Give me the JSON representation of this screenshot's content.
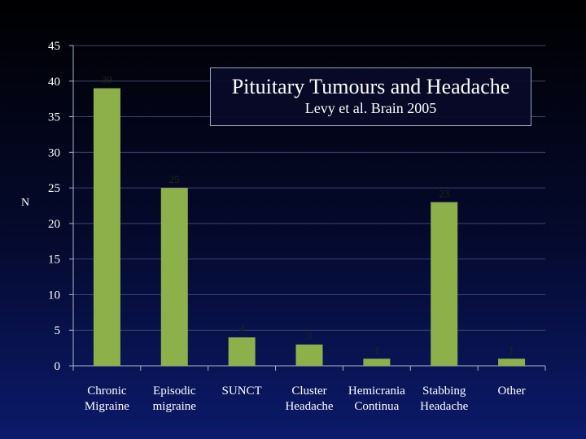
{
  "chart_data": {
    "type": "bar",
    "title": "Pituitary Tumours and Headache",
    "subtitle": "Levy et al. Brain 2005",
    "ylabel": "N",
    "xlabel": "",
    "ylim": [
      0,
      45
    ],
    "yticks": [
      0,
      5,
      10,
      15,
      20,
      25,
      30,
      35,
      40,
      45
    ],
    "grid": true,
    "bar_color": "#8db04a",
    "categories": [
      [
        "Chronic",
        "Migraine"
      ],
      [
        "Episodic",
        "migraine"
      ],
      [
        "SUNCT"
      ],
      [
        "Cluster",
        "Headache"
      ],
      [
        "Hemicrania",
        "Continua"
      ],
      [
        "Stabbing",
        "Headache"
      ],
      [
        "Other"
      ]
    ],
    "values": [
      39,
      25,
      4,
      3,
      1,
      23,
      1
    ]
  }
}
